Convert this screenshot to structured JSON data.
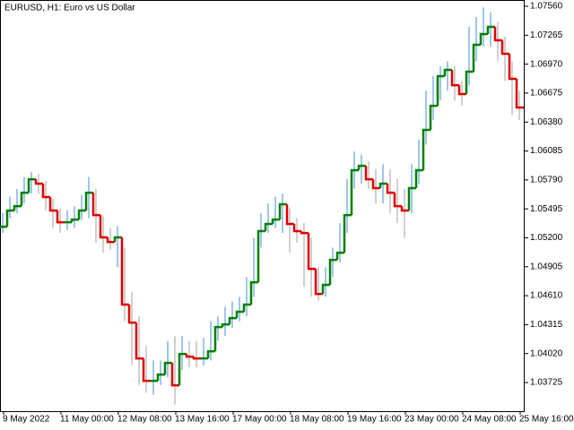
{
  "chart_data": {
    "type": "stepbars",
    "title": "EURUSD, H1:  Euro vs US Dollar",
    "categories": [
      "9 May 2022",
      null,
      null,
      null,
      null,
      null,
      null,
      null,
      "11 May 00:00",
      null,
      null,
      null,
      null,
      null,
      null,
      null,
      "12 May 08:00",
      null,
      null,
      null,
      null,
      null,
      null,
      null,
      "13 May 16:00",
      null,
      null,
      null,
      null,
      null,
      null,
      null,
      "17 May 00:00",
      null,
      null,
      null,
      null,
      null,
      null,
      null,
      "18 May 08:00",
      null,
      null,
      null,
      null,
      null,
      null,
      null,
      "19 May 16:00",
      null,
      null,
      null,
      null,
      null,
      null,
      null,
      "23 May 00:00",
      null,
      null,
      null,
      null,
      null,
      null,
      null,
      "24 May 08:00",
      null,
      null,
      null,
      null,
      null,
      null,
      null,
      "25 May 16:00"
    ],
    "values": [
      1.05313,
      1.05478,
      1.05523,
      1.0566,
      1.05797,
      1.05752,
      1.05615,
      1.05478,
      1.05359,
      1.05359,
      1.05386,
      1.05478,
      1.0566,
      1.05432,
      1.05204,
      1.05158,
      1.05204,
      1.04519,
      1.04336,
      1.03971,
      1.03742,
      1.03742,
      1.03806,
      1.03925,
      1.03697,
      1.04016,
      1.03989,
      1.03971,
      1.03971,
      1.04044,
      1.0429,
      1.04318,
      1.04382,
      1.04446,
      1.04519,
      1.04747,
      1.05268,
      1.05341,
      1.05386,
      1.05542,
      1.05341,
      1.05268,
      1.05249,
      1.04884,
      1.04628,
      1.0472,
      1.04975,
      1.05048,
      1.05432,
      1.05889,
      1.05934,
      1.05797,
      1.05706,
      1.05752,
      1.0566,
      1.05523,
      1.05478,
      1.05706,
      1.05889,
      1.063,
      1.06546,
      1.06848,
      1.06912,
      1.06756,
      1.06665,
      1.06893,
      1.07167,
      1.07277,
      1.0735,
      1.07213,
      1.07076,
      1.0682,
      1.06528
    ],
    "highs": [
      1.0545,
      1.0562,
      1.057,
      1.0582,
      1.0587,
      1.0585,
      1.0578,
      1.056,
      1.055,
      1.0548,
      1.0552,
      1.0564,
      1.0582,
      1.057,
      1.0542,
      1.053,
      1.0532,
      1.051,
      1.0465,
      1.044,
      1.041,
      1.0395,
      1.0395,
      1.0415,
      1.042,
      1.042,
      1.0415,
      1.0415,
      1.0418,
      1.0435,
      1.044,
      1.045,
      1.0455,
      1.046,
      1.048,
      1.052,
      1.0545,
      1.0555,
      1.0562,
      1.0565,
      1.055,
      1.054,
      1.0535,
      1.052,
      1.049,
      1.049,
      1.051,
      1.0535,
      1.058,
      1.0608,
      1.0605,
      1.0598,
      1.059,
      1.0595,
      1.059,
      1.058,
      1.057,
      1.0595,
      1.062,
      1.067,
      1.0685,
      1.0695,
      1.07,
      1.0695,
      1.068,
      1.0735,
      1.0745,
      1.0755,
      1.075,
      1.074,
      1.0725,
      1.07,
      1.067
    ],
    "lows": [
      1.0525,
      1.054,
      1.0545,
      1.0555,
      1.0565,
      1.0565,
      1.0548,
      1.053,
      1.0525,
      1.0528,
      1.053,
      1.0538,
      1.054,
      1.0515,
      1.0505,
      1.0508,
      1.049,
      1.0435,
      1.039,
      1.037,
      1.0362,
      1.036,
      1.037,
      1.0378,
      1.035,
      1.0385,
      1.0388,
      1.0388,
      1.039,
      1.0395,
      1.0415,
      1.042,
      1.0428,
      1.0435,
      1.044,
      1.046,
      1.051,
      1.0525,
      1.053,
      1.0525,
      1.0505,
      1.0515,
      1.047,
      1.046,
      1.0456,
      1.046,
      1.048,
      1.0495,
      1.0525,
      1.057,
      1.0575,
      1.057,
      1.0555,
      1.0555,
      1.0545,
      1.0535,
      1.052,
      1.0545,
      1.0575,
      1.0615,
      1.064,
      1.066,
      1.067,
      1.066,
      1.0655,
      1.0675,
      1.07,
      1.0715,
      1.0715,
      1.07,
      1.068,
      1.0645,
      1.064
    ],
    "up_color": "#008000",
    "down_color": "#e00000",
    "bar_up_color": "#3d8fd9",
    "bar_down_color": "#a0a0a0",
    "ylim": [
      1.03433,
      1.07624
    ],
    "yticks": [
      {
        "value": 1.0756,
        "label": "1.07560"
      },
      {
        "value": 1.07265,
        "label": "1.07265"
      },
      {
        "value": 1.0697,
        "label": "1.06970"
      },
      {
        "value": 1.06675,
        "label": "1.06675"
      },
      {
        "value": 1.0638,
        "label": "1.06380"
      },
      {
        "value": 1.06085,
        "label": "1.06085"
      },
      {
        "value": 1.0579,
        "label": "1.05790"
      },
      {
        "value": 1.05495,
        "label": "1.05495"
      },
      {
        "value": 1.052,
        "label": "1.05200"
      },
      {
        "value": 1.04905,
        "label": "1.04905"
      },
      {
        "value": 1.0461,
        "label": "1.04610"
      },
      {
        "value": 1.04315,
        "label": "1.04315"
      },
      {
        "value": 1.0402,
        "label": "1.04020"
      },
      {
        "value": 1.03725,
        "label": "1.03725"
      }
    ],
    "grid": false
  }
}
